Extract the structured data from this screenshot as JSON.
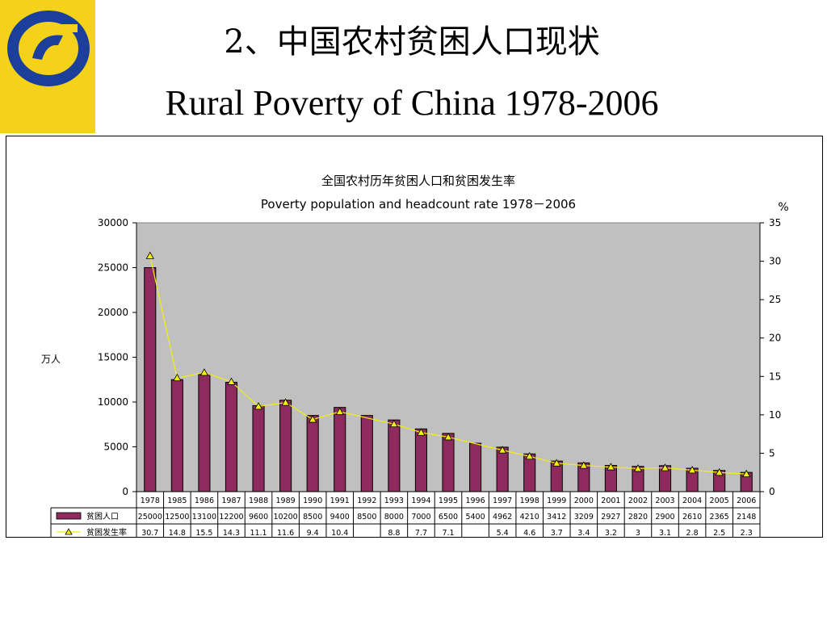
{
  "slide": {
    "title": "2、中国农村贫困人口现状",
    "subtitle": "Rural Poverty of China 1978-2006"
  },
  "colors": {
    "logo_background": "#f4d21a",
    "logo_blue": "#1b3f9a",
    "plot_background": "#c0c0c0",
    "bar_fill": "#8e2a5e",
    "line_color": "#f0f010",
    "marker_fill": "#f0f010"
  },
  "chart_data": {
    "type": "bar",
    "title": "全国农村历年贫困人口和贫困发生率",
    "subtitle": "Poverty population and headcount rate  1978－2006",
    "ylabel_left": "万人",
    "ylabel_right": "%",
    "ylim_left": [
      0,
      30000
    ],
    "ylim_right": [
      0,
      35
    ],
    "yticks_left": [
      "0",
      "5000",
      "10000",
      "15000",
      "20000",
      "25000",
      "30000"
    ],
    "yticks_right": [
      "0",
      "5",
      "10",
      "15",
      "20",
      "25",
      "30",
      "35"
    ],
    "categories": [
      "1978",
      "1985",
      "1986",
      "1987",
      "1988",
      "1989",
      "1990",
      "1991",
      "1992",
      "1993",
      "1994",
      "1995",
      "1996",
      "1997",
      "1998",
      "1999",
      "2000",
      "2001",
      "2002",
      "2003",
      "2004",
      "2005",
      "2006"
    ],
    "series": [
      {
        "name": "贫困人口",
        "type": "bar",
        "axis": "left",
        "values": [
          25000,
          12500,
          13100,
          12200,
          9600,
          10200,
          8500,
          9400,
          8500,
          8000,
          7000,
          6500,
          5400,
          4962,
          4210,
          3412,
          3209,
          2927,
          2820,
          2900,
          2610,
          2365,
          2148
        ],
        "labels": [
          "25000",
          "12500",
          "13100",
          "12200",
          "9600",
          "10200",
          "8500",
          "9400",
          "8500",
          "8000",
          "7000",
          "6500",
          "5400",
          "4962",
          "4210",
          "3412",
          "3209",
          "2927",
          "2820",
          "2900",
          "2610",
          "2365",
          "2148"
        ]
      },
      {
        "name": "贫困发生率",
        "type": "line",
        "axis": "right",
        "values": [
          30.7,
          14.8,
          15.5,
          14.3,
          11.1,
          11.6,
          9.4,
          10.4,
          null,
          8.8,
          7.7,
          7.1,
          null,
          5.4,
          4.6,
          3.7,
          3.4,
          3.2,
          3,
          3.1,
          2.8,
          2.5,
          2.3
        ],
        "labels": [
          "30.7",
          "14.8",
          "15.5",
          "14.3",
          "11.1",
          "11.6",
          "9.4",
          "10.4",
          "",
          "8.8",
          "7.7",
          "7.1",
          "",
          "5.4",
          "4.6",
          "3.7",
          "3.4",
          "3.2",
          "3",
          "3.1",
          "2.8",
          "2.5",
          "2.3"
        ]
      }
    ],
    "grid": false,
    "legend": "data-table"
  }
}
